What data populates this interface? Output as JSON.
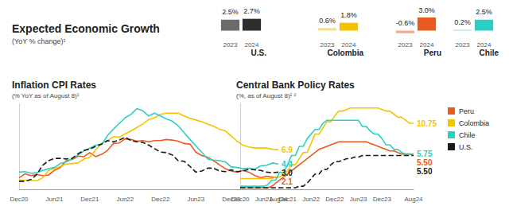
{
  "header": {
    "title": "Expected Economic Growth",
    "subtitle": "(YoY % change)¹"
  },
  "chart_data": [
    {
      "type": "bar",
      "title": "U.S.",
      "categories": [
        "2023",
        "2024"
      ],
      "values": [
        2.5,
        2.7
      ],
      "value_labels": [
        "2.5%",
        "2.7%"
      ],
      "colors": [
        "#6b6b6b",
        "#2e2e2e"
      ],
      "ylim": [
        -1,
        3
      ],
      "data_labels": true,
      "tick_labels": "x",
      "grid": false
    },
    {
      "type": "bar",
      "title": "Colombia",
      "categories": [
        "2023",
        "2024"
      ],
      "values": [
        0.6,
        1.8
      ],
      "value_labels": [
        "0.6%",
        "1.8%"
      ],
      "colors": [
        "#f7e08a",
        "#f5c400"
      ],
      "ylim": [
        -1,
        3
      ],
      "data_labels": true,
      "tick_labels": "x",
      "grid": false
    },
    {
      "type": "bar",
      "title": "Peru",
      "categories": [
        "2023",
        "2024"
      ],
      "values": [
        -0.6,
        3.0
      ],
      "value_labels": [
        "-0.6%",
        "3.0%"
      ],
      "colors": [
        "#f5a98a",
        "#ea5a1e"
      ],
      "ylim": [
        -1,
        3
      ],
      "data_labels": true,
      "tick_labels": "x",
      "grid": false
    },
    {
      "type": "bar",
      "title": "Chile",
      "categories": [
        "2023",
        "2024"
      ],
      "values": [
        0.2,
        2.5
      ],
      "value_labels": [
        "0.2%",
        "2.5%"
      ],
      "colors": [
        "#9ee6e0",
        "#2ccfc5"
      ],
      "ylim": [
        -1,
        3
      ],
      "data_labels": true,
      "tick_labels": "x",
      "grid": false
    },
    {
      "type": "line",
      "title": "Inflation CPI Rates",
      "subtitle": "(% YoY as of August 8)¹",
      "categories": [
        "Dec20",
        null,
        null,
        null,
        null,
        null,
        "Jun21",
        null,
        null,
        null,
        null,
        null,
        "Dec21",
        null,
        null,
        null,
        null,
        null,
        "Jun22",
        null,
        null,
        null,
        null,
        null,
        "Dec22",
        null,
        null,
        null,
        null,
        null,
        "Jun23",
        null,
        null,
        null,
        null,
        null,
        "Dec23",
        null,
        null,
        null,
        null,
        null,
        null,
        null,
        "Aug24"
      ],
      "ylim": [
        0,
        15
      ],
      "tick_labels": "x",
      "grid": false,
      "data_labels": true,
      "series": [
        {
          "name": "Peru",
          "color": "#ea5a1e",
          "line_style": "solid",
          "values": [
            2.0,
            2.7,
            2.4,
            2.6,
            2.4,
            2.5,
            3.3,
            3.8,
            5.0,
            5.2,
            5.8,
            5.7,
            6.4,
            5.7,
            6.1,
            6.8,
            8.0,
            8.1,
            8.8,
            8.7,
            8.4,
            8.5,
            8.3,
            8.5,
            8.5,
            8.7,
            8.6,
            8.4,
            8.0,
            7.9,
            6.5,
            5.9,
            5.6,
            5.0,
            4.3,
            3.6,
            3.2,
            3.0,
            3.3,
            3.0,
            2.4,
            2.0,
            2.3,
            2.1,
            2.1
          ],
          "value_labels": [
            null,
            null,
            null,
            null,
            null,
            null,
            null,
            null,
            null,
            null,
            null,
            null,
            null,
            null,
            null,
            null,
            null,
            null,
            null,
            null,
            null,
            null,
            null,
            null,
            null,
            null,
            null,
            null,
            null,
            null,
            null,
            null,
            null,
            null,
            null,
            null,
            null,
            null,
            null,
            null,
            null,
            null,
            null,
            null,
            "2.1"
          ]
        },
        {
          "name": "Colombia",
          "color": "#f5c400",
          "line_style": "solid",
          "values": [
            1.6,
            1.6,
            1.6,
            1.5,
            2.0,
            3.3,
            3.6,
            4.0,
            4.4,
            4.5,
            4.6,
            5.3,
            5.6,
            6.9,
            8.0,
            8.5,
            9.2,
            9.1,
            9.7,
            10.2,
            10.8,
            11.4,
            12.2,
            12.5,
            13.1,
            13.3,
            13.3,
            13.3,
            12.8,
            12.4,
            12.1,
            11.8,
            11.4,
            11.0,
            10.5,
            10.2,
            9.3,
            8.4,
            7.7,
            7.4,
            7.2,
            7.2,
            7.2,
            7.0,
            6.9
          ],
          "value_labels": [
            null,
            null,
            null,
            null,
            null,
            null,
            null,
            null,
            null,
            null,
            null,
            null,
            null,
            null,
            null,
            null,
            null,
            null,
            null,
            null,
            null,
            null,
            null,
            null,
            null,
            null,
            null,
            null,
            null,
            null,
            null,
            null,
            null,
            null,
            null,
            null,
            null,
            null,
            null,
            null,
            null,
            null,
            null,
            null,
            "6.9"
          ]
        },
        {
          "name": "Chile",
          "color": "#2ccfc5",
          "line_style": "solid",
          "values": [
            3.0,
            3.1,
            2.8,
            2.9,
            3.3,
            3.6,
            3.8,
            4.5,
            4.8,
            5.3,
            6.0,
            6.7,
            7.2,
            7.7,
            7.8,
            9.4,
            10.5,
            11.5,
            12.5,
            13.1,
            14.1,
            13.7,
            12.8,
            13.3,
            12.8,
            12.3,
            11.9,
            11.1,
            9.9,
            8.7,
            7.6,
            6.5,
            5.3,
            5.1,
            5.0,
            4.8,
            3.9,
            3.8,
            3.6,
            3.7,
            3.5,
            4.1,
            4.2,
            4.6,
            4.4
          ],
          "value_labels": [
            null,
            null,
            null,
            null,
            null,
            null,
            null,
            null,
            null,
            null,
            null,
            null,
            null,
            null,
            null,
            null,
            null,
            null,
            null,
            null,
            null,
            null,
            null,
            null,
            null,
            null,
            null,
            null,
            null,
            null,
            null,
            null,
            null,
            null,
            null,
            null,
            null,
            null,
            null,
            null,
            null,
            null,
            null,
            null,
            "4.4"
          ]
        },
        {
          "name": "U.S.",
          "color": "#1a1a1a",
          "line_style": "dashed",
          "values": [
            1.4,
            1.4,
            1.7,
            2.6,
            4.2,
            5.0,
            5.4,
            5.4,
            5.3,
            5.4,
            6.2,
            6.8,
            7.0,
            7.5,
            7.9,
            8.5,
            8.3,
            8.6,
            9.1,
            8.5,
            8.3,
            8.2,
            7.7,
            7.1,
            6.5,
            6.4,
            6.0,
            5.0,
            4.9,
            4.0,
            3.0,
            3.2,
            3.7,
            3.7,
            3.2,
            3.1,
            3.4,
            3.1,
            3.2,
            3.5,
            3.4,
            3.3,
            3.0,
            2.9,
            3.0
          ],
          "value_labels": [
            null,
            null,
            null,
            null,
            null,
            null,
            null,
            null,
            null,
            null,
            null,
            null,
            null,
            null,
            null,
            null,
            null,
            null,
            null,
            null,
            null,
            null,
            null,
            null,
            null,
            null,
            null,
            null,
            null,
            null,
            null,
            null,
            null,
            null,
            null,
            null,
            null,
            null,
            null,
            null,
            null,
            null,
            null,
            null,
            "3.0"
          ]
        }
      ]
    },
    {
      "type": "line",
      "title": "Central Bank Policy Rates",
      "subtitle": "(%, as of August 8)¹ ²",
      "categories": [
        "Dec20",
        null,
        null,
        null,
        null,
        null,
        "Jun21",
        null,
        null,
        null,
        null,
        null,
        "Dec21",
        null,
        null,
        null,
        null,
        null,
        "Jun22",
        null,
        null,
        null,
        null,
        null,
        "Dec22",
        null,
        null,
        null,
        null,
        null,
        "Jun23",
        null,
        null,
        null,
        null,
        null,
        "Dec23",
        null,
        null,
        null,
        null,
        null,
        null,
        null,
        "Aug24"
      ],
      "ylim": [
        0,
        14
      ],
      "tick_labels": "x",
      "grid": false,
      "data_labels": true,
      "legend": "right",
      "series": [
        {
          "name": "Peru",
          "color": "#ea5a1e",
          "line_style": "solid",
          "values": [
            0.25,
            0.25,
            0.25,
            0.25,
            0.25,
            0.25,
            0.25,
            0.25,
            0.5,
            1.0,
            1.5,
            2.0,
            2.5,
            3.0,
            3.5,
            4.0,
            4.5,
            5.0,
            5.5,
            6.0,
            6.5,
            6.75,
            7.0,
            7.25,
            7.5,
            7.75,
            7.75,
            7.75,
            7.75,
            7.75,
            7.75,
            7.75,
            7.75,
            7.5,
            7.25,
            7.0,
            6.75,
            6.5,
            6.25,
            6.25,
            6.0,
            5.75,
            5.75,
            5.75,
            5.5
          ],
          "value_labels": [
            null,
            null,
            null,
            null,
            null,
            null,
            null,
            null,
            null,
            null,
            null,
            null,
            null,
            null,
            null,
            null,
            null,
            null,
            null,
            null,
            null,
            null,
            null,
            null,
            null,
            null,
            null,
            null,
            null,
            null,
            null,
            null,
            null,
            null,
            null,
            null,
            null,
            null,
            null,
            null,
            null,
            null,
            null,
            null,
            "5.50"
          ]
        },
        {
          "name": "Colombia",
          "color": "#f5c400",
          "line_style": "solid",
          "values": [
            1.75,
            1.75,
            1.75,
            1.75,
            1.75,
            1.75,
            1.75,
            1.75,
            1.75,
            2.0,
            2.0,
            2.5,
            3.0,
            4.0,
            4.0,
            5.0,
            6.0,
            6.0,
            7.5,
            9.0,
            9.0,
            10.0,
            11.0,
            11.0,
            12.0,
            12.75,
            12.75,
            13.0,
            13.25,
            13.25,
            13.25,
            13.25,
            13.25,
            13.25,
            13.25,
            13.25,
            13.0,
            12.75,
            12.75,
            12.25,
            11.75,
            11.75,
            11.25,
            10.75,
            10.75
          ],
          "value_labels": [
            null,
            null,
            null,
            null,
            null,
            null,
            null,
            null,
            null,
            null,
            null,
            null,
            null,
            null,
            null,
            null,
            null,
            null,
            null,
            null,
            null,
            null,
            null,
            null,
            null,
            null,
            null,
            null,
            null,
            null,
            null,
            null,
            null,
            null,
            null,
            null,
            null,
            null,
            null,
            null,
            null,
            null,
            null,
            null,
            "10.75"
          ]
        },
        {
          "name": "Chile",
          "color": "#2ccfc5",
          "line_style": "solid",
          "values": [
            0.5,
            0.5,
            0.5,
            0.5,
            0.5,
            0.5,
            0.5,
            0.75,
            1.5,
            1.5,
            2.75,
            2.75,
            4.0,
            5.5,
            5.5,
            7.0,
            7.0,
            8.25,
            9.0,
            9.75,
            9.75,
            10.75,
            11.25,
            11.25,
            11.25,
            11.25,
            11.25,
            11.25,
            11.25,
            11.25,
            11.25,
            10.25,
            10.25,
            9.5,
            9.0,
            9.0,
            8.25,
            7.25,
            7.25,
            6.5,
            6.5,
            6.0,
            5.75,
            5.75,
            5.75
          ],
          "value_labels": [
            null,
            null,
            null,
            null,
            null,
            null,
            null,
            null,
            null,
            null,
            null,
            null,
            null,
            null,
            null,
            null,
            null,
            null,
            null,
            null,
            null,
            null,
            null,
            null,
            null,
            null,
            null,
            null,
            null,
            null,
            null,
            null,
            null,
            null,
            null,
            null,
            null,
            null,
            null,
            null,
            null,
            null,
            null,
            null,
            "5.75"
          ]
        },
        {
          "name": "U.S.",
          "color": "#1a1a1a",
          "line_style": "dashed",
          "values": [
            0.25,
            0.25,
            0.25,
            0.25,
            0.25,
            0.25,
            0.25,
            0.25,
            0.25,
            0.25,
            0.25,
            0.25,
            0.25,
            0.25,
            0.25,
            0.5,
            0.5,
            1.0,
            1.75,
            2.5,
            2.5,
            3.25,
            3.25,
            4.0,
            4.5,
            4.5,
            4.75,
            5.0,
            5.0,
            5.25,
            5.25,
            5.5,
            5.5,
            5.5,
            5.5,
            5.5,
            5.5,
            5.5,
            5.5,
            5.5,
            5.5,
            5.5,
            5.5,
            5.5,
            5.5
          ],
          "value_labels": [
            null,
            null,
            null,
            null,
            null,
            null,
            null,
            null,
            null,
            null,
            null,
            null,
            null,
            null,
            null,
            null,
            null,
            null,
            null,
            null,
            null,
            null,
            null,
            null,
            null,
            null,
            null,
            null,
            null,
            null,
            null,
            null,
            null,
            null,
            null,
            null,
            null,
            null,
            null,
            null,
            null,
            null,
            null,
            null,
            "5.50"
          ]
        }
      ]
    }
  ]
}
